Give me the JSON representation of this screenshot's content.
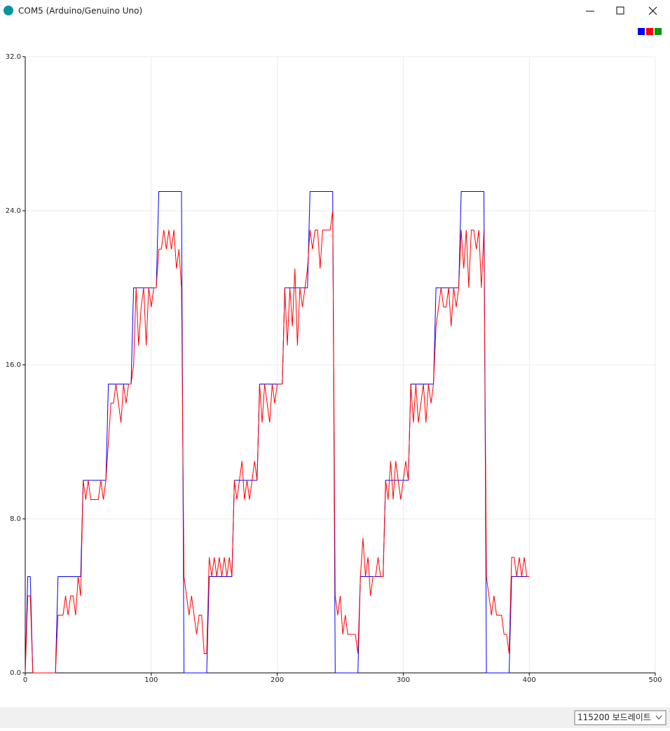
{
  "window": {
    "title": "COM5 (Arduino/Genuino Uno)"
  },
  "baud_rate": "115200 보드레이트",
  "chart_data": {
    "type": "line",
    "x": [
      0,
      2,
      4,
      6,
      8,
      10,
      12,
      14,
      16,
      18,
      20,
      22,
      24,
      26,
      28,
      30,
      32,
      34,
      36,
      38,
      40,
      42,
      44,
      46,
      48,
      50,
      52,
      54,
      56,
      58,
      60,
      62,
      64,
      66,
      68,
      70,
      72,
      74,
      76,
      78,
      80,
      82,
      84,
      86,
      88,
      90,
      92,
      94,
      96,
      98,
      100,
      102,
      104,
      106,
      108,
      110,
      112,
      114,
      116,
      118,
      120,
      122,
      124,
      126,
      128,
      130,
      132,
      134,
      136,
      138,
      140,
      142,
      144,
      146,
      148,
      150,
      152,
      154,
      156,
      158,
      160,
      162,
      164,
      166,
      168,
      170,
      172,
      174,
      176,
      178,
      180,
      182,
      184,
      186,
      188,
      190,
      192,
      194,
      196,
      198,
      200,
      202,
      204,
      206,
      208,
      210,
      212,
      214,
      216,
      218,
      220,
      222,
      224,
      226,
      228,
      230,
      232,
      234,
      236,
      238,
      240,
      242,
      244,
      246,
      248,
      250,
      252,
      254,
      256,
      258,
      260,
      262,
      264,
      266,
      268,
      270,
      272,
      274,
      276,
      278,
      280,
      282,
      284,
      286,
      288,
      290,
      292,
      294,
      296,
      298,
      300,
      302,
      304,
      306,
      308,
      310,
      312,
      314,
      316,
      318,
      320,
      322,
      324,
      326,
      328,
      330,
      332,
      334,
      336,
      338,
      340,
      342,
      344,
      346,
      348,
      350,
      352,
      354,
      356,
      358,
      360,
      362,
      364,
      366,
      368,
      370,
      372,
      374,
      376,
      378,
      380,
      382,
      384,
      386,
      388,
      390,
      392,
      394,
      396,
      398,
      400
    ],
    "series": [
      {
        "color": "#0000ff",
        "values": [
          0,
          5,
          5,
          0,
          0,
          0,
          0,
          0,
          0,
          0,
          0,
          0,
          0,
          5,
          5,
          5,
          5,
          5,
          5,
          5,
          5,
          5,
          5,
          10,
          10,
          10,
          10,
          10,
          10,
          10,
          10,
          10,
          10,
          15,
          15,
          15,
          15,
          15,
          15,
          15,
          15,
          15,
          15,
          20,
          20,
          20,
          20,
          20,
          20,
          20,
          20,
          20,
          20,
          25,
          25,
          25,
          25,
          25,
          25,
          25,
          25,
          25,
          25,
          0,
          0,
          0,
          0,
          0,
          0,
          0,
          0,
          0,
          0,
          5,
          5,
          5,
          5,
          5,
          5,
          5,
          5,
          5,
          5,
          10,
          10,
          10,
          10,
          10,
          10,
          10,
          10,
          10,
          10,
          15,
          15,
          15,
          15,
          15,
          15,
          15,
          15,
          15,
          15,
          20,
          20,
          20,
          20,
          20,
          20,
          20,
          20,
          20,
          20,
          25,
          25,
          25,
          25,
          25,
          25,
          25,
          25,
          25,
          25,
          0,
          0,
          0,
          0,
          0,
          0,
          0,
          0,
          0,
          0,
          5,
          5,
          5,
          5,
          5,
          5,
          5,
          5,
          5,
          5,
          10,
          10,
          10,
          10,
          10,
          10,
          10,
          10,
          10,
          10,
          15,
          15,
          15,
          15,
          15,
          15,
          15,
          15,
          15,
          15,
          20,
          20,
          20,
          20,
          20,
          20,
          20,
          20,
          20,
          20,
          25,
          25,
          25,
          25,
          25,
          25,
          25,
          25,
          25,
          25,
          0,
          0,
          0,
          0,
          0,
          0,
          0,
          0,
          0,
          0,
          5,
          5,
          5,
          5,
          5,
          5,
          5,
          5
        ]
      },
      {
        "color": "#ff0000",
        "values": [
          0,
          4,
          4,
          0,
          0,
          0,
          0,
          0,
          0,
          0,
          0,
          0,
          0,
          3,
          3,
          3,
          4,
          3,
          4,
          4,
          3,
          5,
          4,
          10,
          9,
          10,
          9,
          9,
          9,
          9,
          10,
          9,
          10,
          12,
          14,
          14,
          15,
          14,
          13,
          15,
          14,
          15,
          15,
          16,
          20,
          17,
          19,
          20,
          17,
          20,
          19,
          20,
          20,
          22,
          22,
          23,
          22,
          23,
          22,
          23,
          21,
          22,
          20,
          5,
          4,
          3,
          4,
          3,
          2,
          3,
          3,
          1,
          1,
          6,
          5,
          6,
          5,
          6,
          5,
          6,
          5,
          6,
          5,
          10,
          9,
          10,
          11,
          9,
          10,
          9,
          10,
          11,
          10,
          15,
          13,
          15,
          14,
          13,
          15,
          14,
          15,
          15,
          15,
          20,
          17,
          20,
          18,
          21,
          17,
          20,
          19,
          20,
          21,
          23,
          22,
          23,
          23,
          21,
          23,
          23,
          23,
          23,
          24,
          4,
          3,
          4,
          2,
          3,
          2,
          2,
          2,
          2,
          1,
          5,
          7,
          5,
          6,
          4,
          5,
          5,
          6,
          5,
          5,
          10,
          9,
          11,
          9,
          11,
          10,
          9,
          10,
          11,
          10,
          15,
          13,
          15,
          13,
          14,
          15,
          13,
          15,
          14,
          15,
          18,
          19,
          20,
          19,
          19,
          20,
          18,
          20,
          19,
          20,
          23,
          21,
          23,
          20,
          23,
          23,
          22,
          23,
          20,
          23,
          5,
          4,
          3,
          4,
          3,
          3,
          3,
          2,
          2,
          1,
          6,
          6,
          5,
          6,
          5,
          6,
          5,
          5
        ]
      },
      {
        "color": "#009900",
        "values": [
          null,
          null,
          null,
          null,
          null,
          null,
          null,
          null,
          null,
          null,
          null,
          null,
          null,
          null,
          null,
          null,
          null,
          null,
          null,
          null,
          null,
          null,
          null,
          null,
          null,
          null,
          null,
          null,
          null,
          null,
          null,
          null,
          null,
          null,
          null,
          null,
          null,
          null,
          null,
          null,
          null,
          null,
          null,
          null,
          null,
          null,
          null,
          null,
          null,
          null,
          null,
          null,
          null,
          null,
          null,
          null,
          null,
          null,
          null,
          null,
          null,
          null,
          null,
          null,
          null,
          null,
          null,
          null,
          null,
          null,
          null,
          null,
          null,
          null,
          null,
          null,
          null,
          null,
          null,
          null,
          null,
          null,
          null,
          null,
          null,
          null,
          null,
          null,
          null,
          null,
          null,
          null,
          null,
          null,
          null,
          null,
          null,
          null,
          null,
          null,
          null,
          null,
          null,
          null,
          null,
          null,
          null,
          null,
          null,
          null,
          null,
          null,
          null,
          null,
          null,
          null,
          null,
          null,
          null,
          null,
          null,
          null,
          null,
          null,
          null,
          null,
          null,
          null,
          null,
          null,
          null,
          null,
          null,
          null,
          null,
          null,
          null,
          null,
          null,
          null,
          null,
          null,
          null,
          null,
          null,
          null,
          null,
          null,
          null,
          null,
          null,
          null,
          null,
          null,
          null,
          null,
          null,
          null,
          null,
          null,
          null,
          null,
          null,
          null,
          null,
          null,
          null,
          null,
          null,
          null,
          null,
          null,
          null,
          null,
          null,
          null,
          null,
          null,
          null,
          null,
          null,
          null,
          null,
          null,
          null,
          null,
          null,
          null,
          null,
          null,
          null,
          null,
          null,
          null,
          null,
          null,
          null,
          null,
          null,
          null,
          null
        ]
      }
    ],
    "xlim": [
      0,
      500
    ],
    "xticks": [
      0,
      100,
      200,
      300,
      400,
      500
    ],
    "ylim": [
      0,
      32
    ],
    "yticks": [
      {
        "value": 0,
        "label": "0.0"
      },
      {
        "value": 8,
        "label": "8.0"
      },
      {
        "value": 16,
        "label": "16.0"
      },
      {
        "value": 24,
        "label": "24.0"
      },
      {
        "value": 32,
        "label": "32.0"
      }
    ],
    "grid": true,
    "legend": "top-right"
  }
}
